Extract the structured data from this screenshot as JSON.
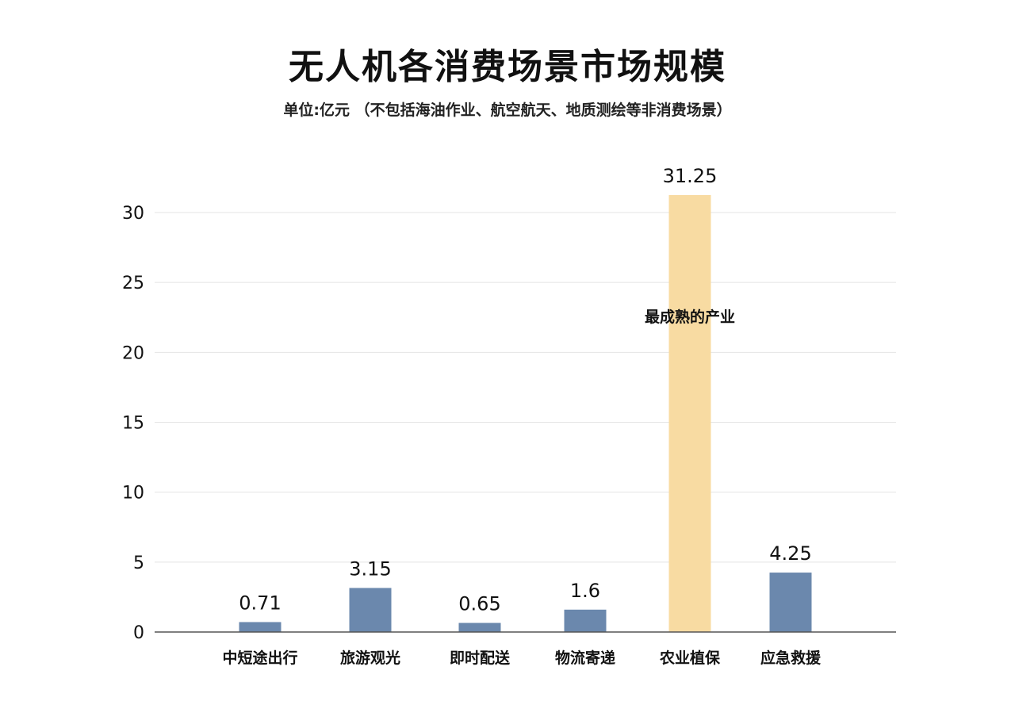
{
  "chart_data": {
    "type": "bar",
    "title": "无人机各消费场景市场规模",
    "subtitle": "单位:亿元 （不包括海油作业、航空航天、地质测绘等非消费场景）",
    "xlabel": "",
    "ylabel": "",
    "categories": [
      "中短途出行",
      "旅游观光",
      "即时配送",
      "物流寄递",
      "农业植保",
      "应急救援"
    ],
    "values": [
      0.71,
      3.15,
      0.65,
      1.6,
      31.25,
      4.25
    ],
    "value_labels": [
      "0.71",
      "3.15",
      "0.65",
      "1.6",
      "31.25",
      "4.25"
    ],
    "ylim": [
      0,
      30
    ],
    "yticks": [
      0,
      5,
      10,
      15,
      20,
      25,
      30
    ],
    "grid": true,
    "legend": "none",
    "bar_colors": [
      "#6b88ad",
      "#6b88ad",
      "#6b88ad",
      "#6b88ad",
      "#f8dba2",
      "#6b88ad"
    ],
    "annotations": [
      {
        "category": "农业植保",
        "text": "最成熟的产业"
      }
    ]
  }
}
